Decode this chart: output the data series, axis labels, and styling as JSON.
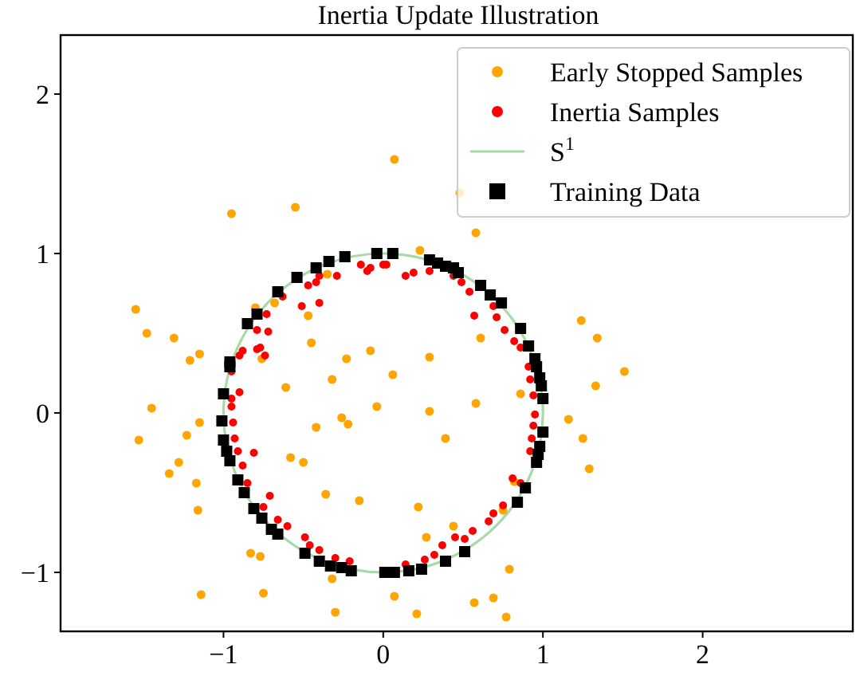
{
  "chart_data": {
    "type": "scatter",
    "title": "Inertia Update Illustration",
    "xlim": [
      -2.02,
      2.94
    ],
    "ylim": [
      -1.37,
      2.37
    ],
    "xticks": [
      -1,
      0,
      1,
      2
    ],
    "yticks": [
      -1,
      0,
      1,
      2
    ],
    "grid": false,
    "legend": "top right",
    "annotations": [
      "S$^{1}$"
    ],
    "series": [
      {
        "name": "Early Stopped Samples",
        "marker": "circle",
        "color": "#ffa500",
        "x": [
          0.07,
          -0.95,
          -0.55,
          -1.55,
          -1.48,
          -1.31,
          -1.21,
          -1.15,
          -1.45,
          -1.53,
          -1.34,
          -1.28,
          -1.17,
          -1.16,
          -1.14,
          -0.75,
          -0.83,
          -0.77,
          -0.3,
          -0.32,
          0.07,
          0.21,
          0.77,
          0.69,
          0.57,
          0.79,
          1.16,
          1.25,
          1.29,
          1.33,
          1.51,
          1.34,
          1.24,
          0.86,
          0.61,
          0.29,
          0.06,
          -0.08,
          -0.23,
          -0.32,
          -0.61,
          -0.42,
          -0.26,
          -0.5,
          -0.36,
          0.22,
          0.27,
          0.44,
          0.29,
          0.39,
          0.75,
          0.82,
          -0.45,
          -0.47,
          -0.68,
          -0.8,
          -0.76,
          -1.15,
          -1.23,
          0.48,
          0.23,
          0.58,
          -0.35,
          -0.22,
          0.58,
          -0.58,
          -0.15,
          -0.04
        ],
        "values": [
          1.59,
          1.25,
          1.29,
          0.65,
          0.5,
          0.47,
          0.33,
          0.37,
          0.03,
          -0.17,
          -0.38,
          -0.31,
          -0.44,
          -0.61,
          -1.14,
          -1.13,
          -0.88,
          -0.9,
          -1.25,
          -1.04,
          -1.15,
          -1.26,
          -1.28,
          -1.16,
          -1.19,
          -0.98,
          -0.04,
          -0.16,
          -0.35,
          0.17,
          0.26,
          0.47,
          0.58,
          0.12,
          0.47,
          0.35,
          0.24,
          0.39,
          0.34,
          0.21,
          0.16,
          -0.09,
          -0.03,
          -0.31,
          -0.51,
          -0.59,
          -0.78,
          -0.71,
          0.01,
          -0.16,
          -0.61,
          -0.43,
          0.44,
          0.61,
          0.69,
          0.66,
          0.34,
          -0.06,
          -0.14,
          1.38,
          1.02,
          1.13,
          0.87,
          -0.07,
          0.06,
          -0.28,
          -0.55,
          0.04
        ]
      },
      {
        "name": "Inertia Samples",
        "marker": "circle",
        "color": "#ff0000",
        "x": [
          -0.9,
          -0.88,
          -0.79,
          -0.77,
          -0.74,
          -0.72,
          -0.73,
          -0.79,
          -0.63,
          -0.51,
          -0.47,
          -0.42,
          -0.4,
          -0.4,
          -0.29,
          -0.14,
          -0.1,
          0.0,
          -0.95,
          -0.9,
          -0.95,
          -0.08,
          0.02,
          0.14,
          0.19,
          0.29,
          0.44,
          0.49,
          0.54,
          0.57,
          0.69,
          0.71,
          0.76,
          0.82,
          0.86,
          0.91,
          0.92,
          0.94,
          0.95,
          0.94,
          0.93,
          0.92,
          0.81,
          0.86,
          0.75,
          0.69,
          0.66,
          0.56,
          0.51,
          0.45,
          0.37,
          0.32,
          0.26,
          0.14,
          -0.95,
          -0.94,
          -0.93,
          -0.91,
          -0.88,
          -0.81,
          -0.85,
          -0.71,
          -0.75,
          -0.66,
          -0.6,
          -0.49,
          -0.46,
          -0.4,
          -0.3,
          -0.21
        ],
        "values": [
          0.36,
          0.39,
          0.4,
          0.41,
          0.36,
          0.51,
          0.62,
          0.52,
          0.73,
          0.67,
          0.8,
          0.82,
          0.86,
          0.69,
          0.86,
          0.93,
          0.89,
          0.93,
          0.26,
          0.13,
          0.04,
          0.91,
          0.93,
          0.86,
          0.88,
          0.89,
          0.86,
          0.82,
          0.76,
          0.61,
          0.67,
          0.6,
          0.52,
          0.45,
          0.41,
          0.29,
          0.21,
          0.11,
          -0.01,
          -0.08,
          -0.16,
          -0.24,
          -0.41,
          -0.44,
          -0.58,
          -0.63,
          -0.68,
          -0.74,
          -0.79,
          -0.78,
          -0.83,
          -0.89,
          -0.92,
          -0.95,
          0.09,
          -0.06,
          -0.16,
          -0.24,
          -0.33,
          -0.25,
          -0.44,
          -0.52,
          -0.59,
          -0.67,
          -0.71,
          -0.78,
          -0.83,
          -0.86,
          -0.91,
          -0.93
        ]
      },
      {
        "name": "Training Data",
        "marker": "square",
        "color": "#000000",
        "x": [
          -0.04,
          0.06,
          0.29,
          0.34,
          0.39,
          0.44,
          0.47,
          0.61,
          0.67,
          0.74,
          0.86,
          0.91,
          0.95,
          0.96,
          0.98,
          0.99,
          1.0,
          1.0,
          0.98,
          0.97,
          0.96,
          0.89,
          0.84,
          0.51,
          0.39,
          0.24,
          0.16,
          0.07,
          0.01,
          -0.2,
          -0.26,
          -0.33,
          -0.4,
          -0.49,
          -0.66,
          -0.7,
          -0.76,
          -0.81,
          -0.87,
          -0.91,
          -0.96,
          -0.98,
          -1.0,
          -1.01,
          -0.96,
          -0.96,
          -0.85,
          -0.79,
          -0.66,
          -0.54,
          -0.42,
          -0.34,
          -0.24,
          -1.0
        ],
        "values": [
          1.0,
          1.0,
          0.96,
          0.94,
          0.92,
          0.91,
          0.88,
          0.8,
          0.74,
          0.69,
          0.53,
          0.42,
          0.34,
          0.29,
          0.22,
          0.17,
          0.09,
          -0.12,
          -0.21,
          -0.26,
          -0.31,
          -0.47,
          -0.56,
          -0.87,
          -0.93,
          -0.98,
          -0.99,
          -1.0,
          -1.0,
          -0.99,
          -0.97,
          -0.96,
          -0.93,
          -0.88,
          -0.76,
          -0.73,
          -0.66,
          -0.6,
          -0.5,
          -0.42,
          -0.3,
          -0.24,
          -0.17,
          -0.05,
          0.29,
          0.32,
          0.56,
          0.62,
          0.76,
          0.85,
          0.91,
          0.95,
          0.98,
          0.12
        ]
      }
    ]
  }
}
